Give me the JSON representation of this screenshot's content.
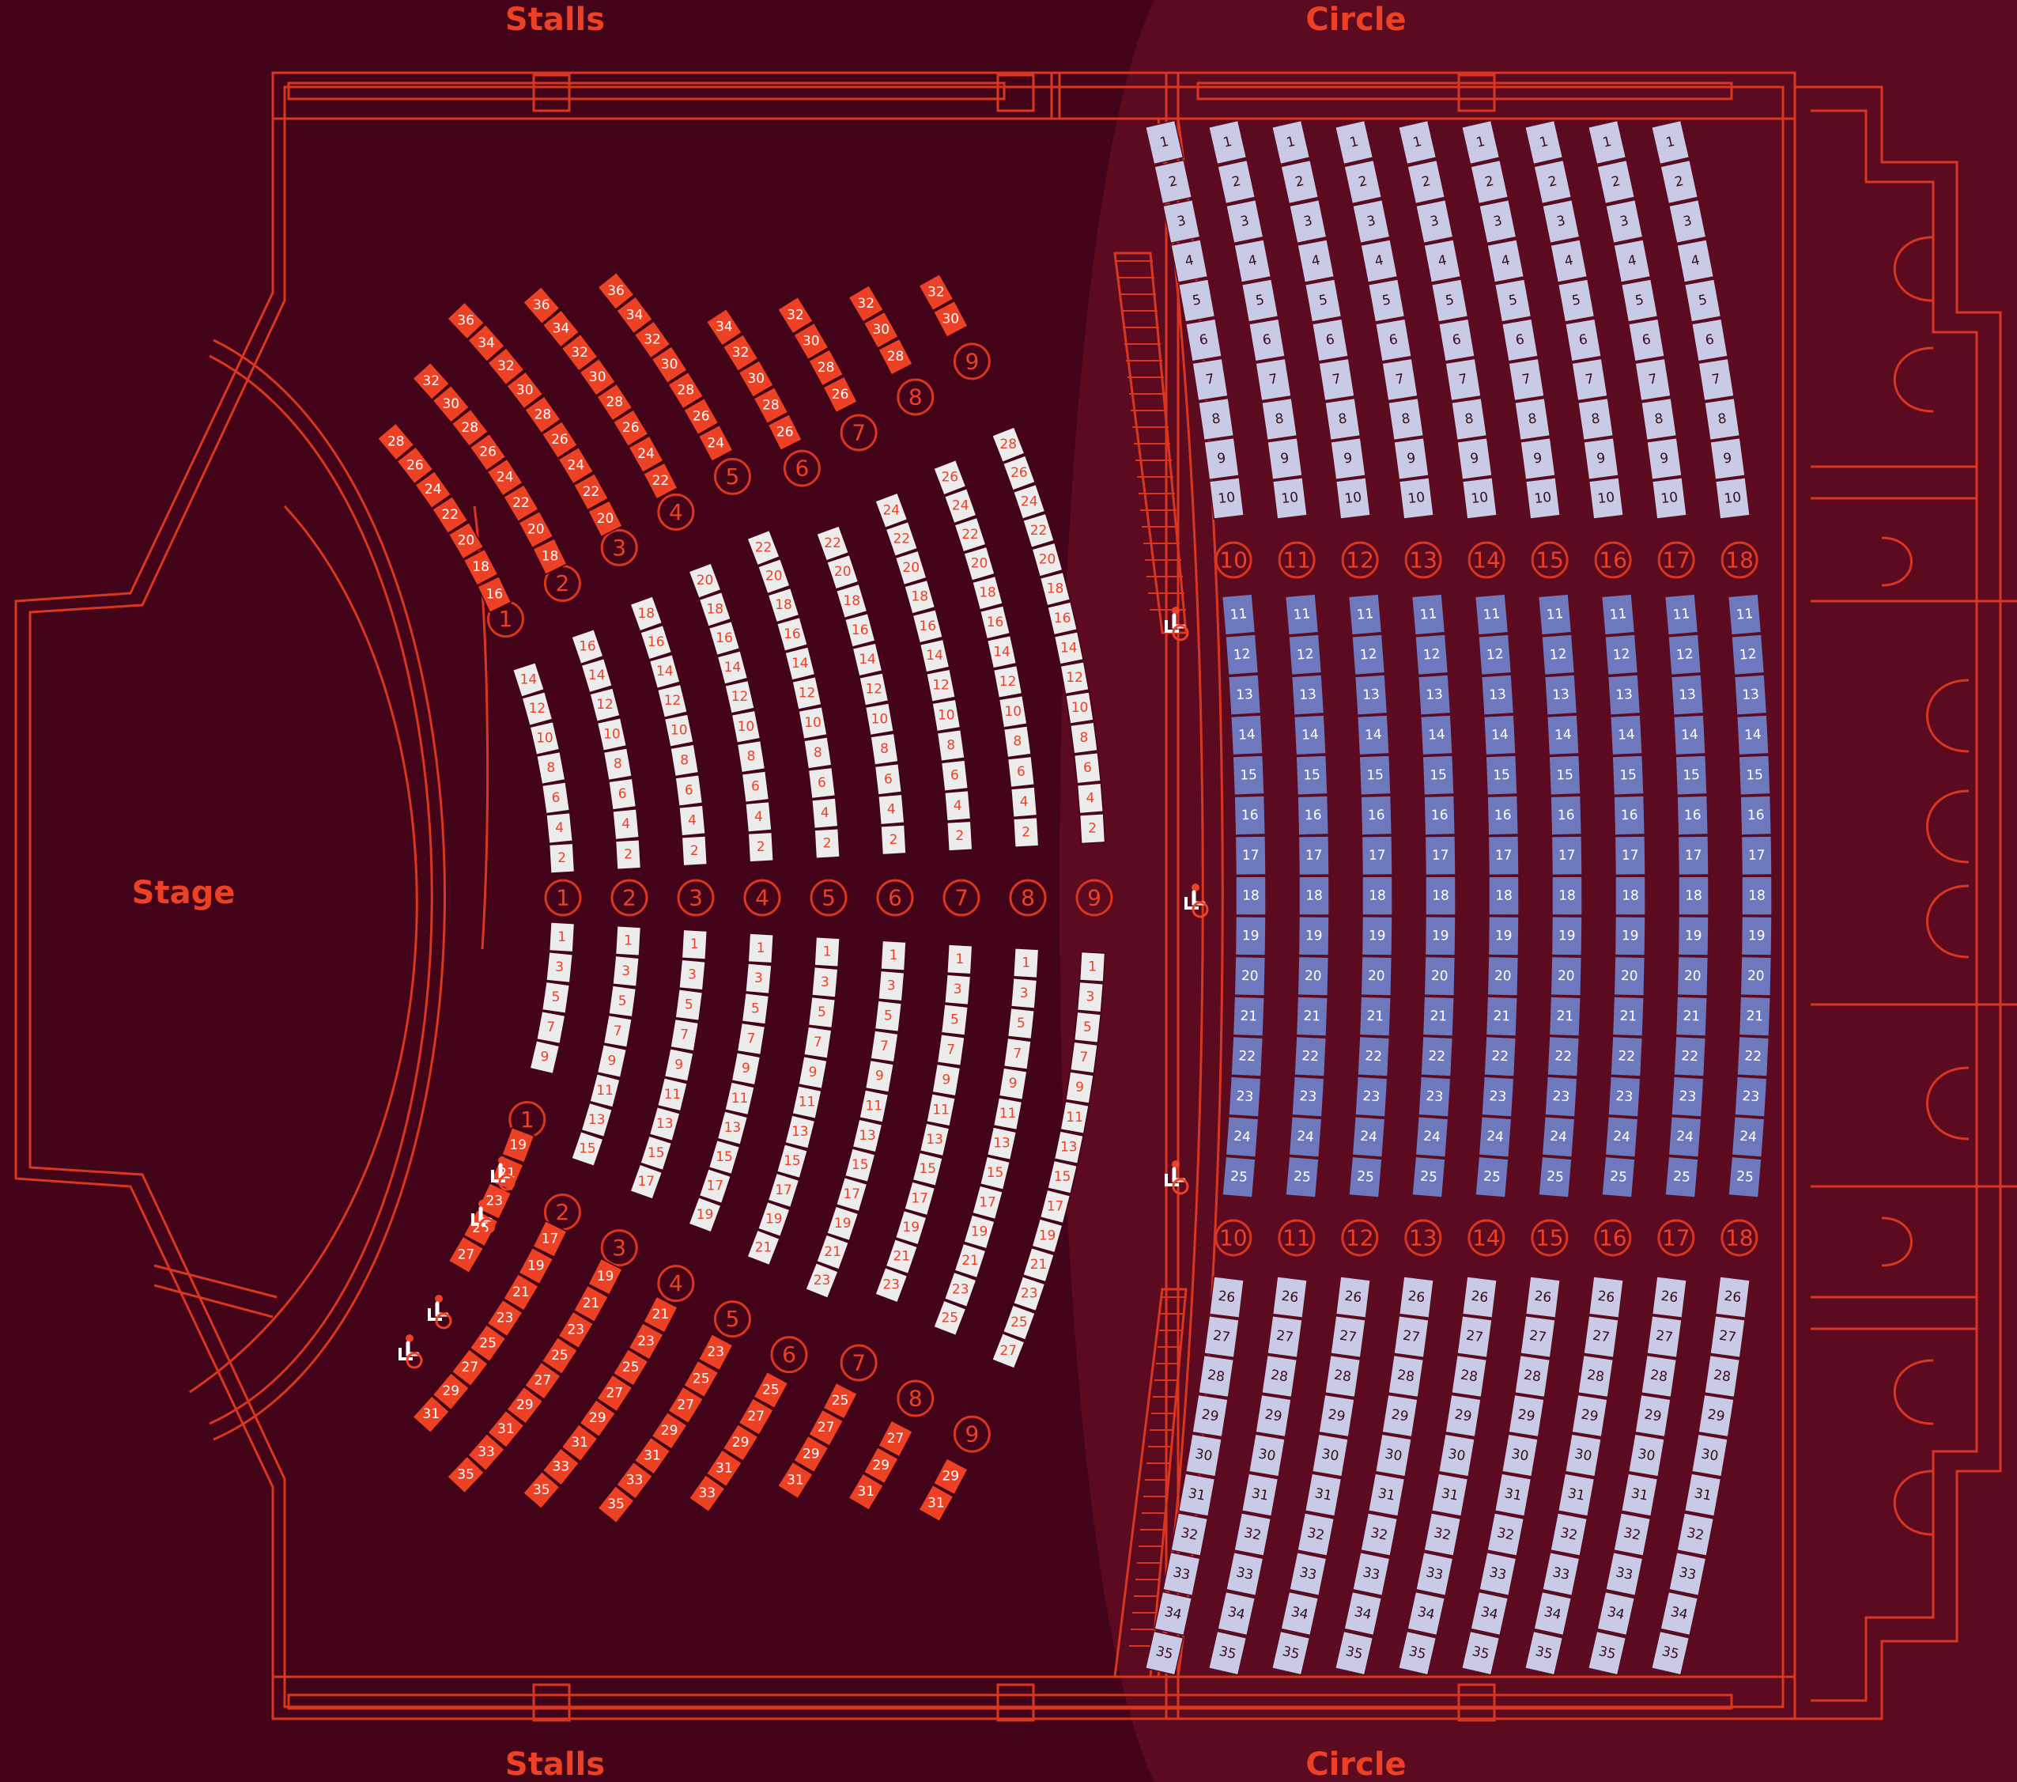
{
  "labels": {
    "stalls_top": "Stalls",
    "stalls_bottom": "Stalls",
    "circle_top": "Circle",
    "circle_bottom": "Circle",
    "stage": "Stage"
  },
  "colors": {
    "background": "#430419",
    "circle_background": "#5c0a20",
    "outline": "#d8361f",
    "accent_text": "#ec4125",
    "stalls_outer_seat": "#ec4125",
    "stalls_inner_seat": "#ececec",
    "circle_light_seat": "#c9cbe6",
    "circle_dark_seat": "#6e78bd",
    "circle_dark_seat_text": "#ffffff",
    "circle_light_seat_text": "#3b0a1a"
  },
  "stalls": {
    "rows": [
      "1",
      "2",
      "3",
      "4",
      "5",
      "6",
      "7",
      "8",
      "9"
    ],
    "upper_left_blocks": [
      [
        "28",
        "26",
        "24",
        "22",
        "20",
        "18",
        "16"
      ],
      [
        "32",
        "30",
        "28",
        "26",
        "24",
        "22",
        "20",
        "18"
      ],
      [
        "36",
        "34",
        "32",
        "30",
        "28",
        "26",
        "24",
        "22",
        "20"
      ],
      [
        "36",
        "34",
        "32",
        "30",
        "28",
        "26",
        "24",
        "22"
      ],
      [
        "36",
        "34",
        "32",
        "30",
        "28",
        "26",
        "24"
      ],
      [
        "34",
        "32",
        "30",
        "28",
        "26"
      ],
      [
        "32",
        "30",
        "28",
        "26"
      ],
      [
        "32",
        "30",
        "28"
      ],
      [
        "32",
        "30"
      ]
    ],
    "upper_centre_blocks": [
      [
        "14",
        "12",
        "10",
        "8",
        "6",
        "4",
        "2"
      ],
      [
        "16",
        "14",
        "12",
        "10",
        "8",
        "6",
        "4",
        "2"
      ],
      [
        "18",
        "16",
        "14",
        "12",
        "10",
        "8",
        "6",
        "4",
        "2"
      ],
      [
        "20",
        "18",
        "16",
        "14",
        "12",
        "10",
        "8",
        "6",
        "4",
        "2"
      ],
      [
        "22",
        "20",
        "18",
        "16",
        "14",
        "12",
        "10",
        "8",
        "6",
        "4",
        "2"
      ],
      [
        "22",
        "20",
        "18",
        "16",
        "14",
        "12",
        "10",
        "8",
        "6",
        "4",
        "2"
      ],
      [
        "24",
        "22",
        "20",
        "18",
        "16",
        "14",
        "12",
        "10",
        "8",
        "6",
        "4",
        "2"
      ],
      [
        "26",
        "24",
        "22",
        "20",
        "18",
        "16",
        "14",
        "12",
        "10",
        "8",
        "6",
        "4",
        "2"
      ],
      [
        "28",
        "26",
        "24",
        "22",
        "20",
        "18",
        "16",
        "14",
        "12",
        "10",
        "8",
        "6",
        "4",
        "2"
      ]
    ],
    "lower_centre_blocks": [
      [
        "1",
        "3",
        "5",
        "7",
        "9"
      ],
      [
        "1",
        "3",
        "5",
        "7",
        "9",
        "11",
        "13",
        "15"
      ],
      [
        "1",
        "3",
        "5",
        "7",
        "9",
        "11",
        "13",
        "15",
        "17"
      ],
      [
        "1",
        "3",
        "5",
        "7",
        "9",
        "11",
        "13",
        "15",
        "17",
        "19"
      ],
      [
        "1",
        "3",
        "5",
        "7",
        "9",
        "11",
        "13",
        "15",
        "17",
        "19",
        "21"
      ],
      [
        "1",
        "3",
        "5",
        "7",
        "9",
        "11",
        "13",
        "15",
        "17",
        "19",
        "21",
        "23"
      ],
      [
        "1",
        "3",
        "5",
        "7",
        "9",
        "11",
        "13",
        "15",
        "17",
        "19",
        "21",
        "23"
      ],
      [
        "1",
        "3",
        "5",
        "7",
        "9",
        "11",
        "13",
        "15",
        "17",
        "19",
        "21",
        "23",
        "25"
      ],
      [
        "1",
        "3",
        "5",
        "7",
        "9",
        "11",
        "13",
        "15",
        "17",
        "19",
        "21",
        "23",
        "25",
        "27"
      ]
    ],
    "lower_left_blocks": [
      [
        "19",
        "21",
        "23",
        "25",
        "27"
      ],
      [
        "17",
        "19",
        "21",
        "23",
        "25",
        "27",
        "29",
        "31"
      ],
      [
        "19",
        "21",
        "23",
        "25",
        "27",
        "29",
        "31",
        "33",
        "35"
      ],
      [
        "21",
        "23",
        "25",
        "27",
        "29",
        "31",
        "33",
        "35"
      ],
      [
        "23",
        "25",
        "27",
        "29",
        "31",
        "33",
        "35"
      ],
      [
        "25",
        "27",
        "29",
        "31",
        "33"
      ],
      [
        "25",
        "27",
        "29",
        "31"
      ],
      [
        "27",
        "29",
        "31"
      ],
      [
        "29",
        "31"
      ]
    ]
  },
  "circle": {
    "rows": [
      "10",
      "11",
      "12",
      "13",
      "14",
      "15",
      "16",
      "17",
      "18"
    ],
    "top_seats": [
      "1",
      "2",
      "3",
      "4",
      "5",
      "6",
      "7",
      "8",
      "9",
      "10"
    ],
    "middle_seats": [
      "11",
      "12",
      "13",
      "14",
      "15",
      "16",
      "17",
      "18",
      "19",
      "20",
      "21",
      "22",
      "23",
      "24",
      "25"
    ],
    "bottom_seats": [
      "26",
      "27",
      "28",
      "29",
      "30",
      "31",
      "32",
      "33",
      "34",
      "35"
    ]
  },
  "wheelchair_spaces": 7
}
